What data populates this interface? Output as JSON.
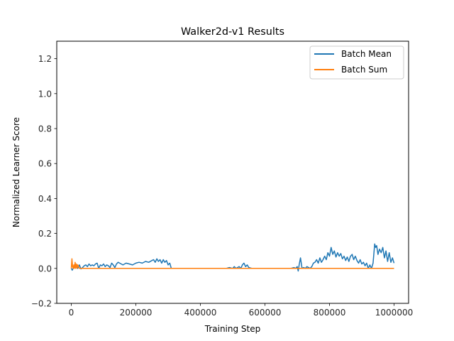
{
  "chart_data": {
    "type": "line",
    "title": "Walker2d-v1 Results",
    "xlabel": "Training Step",
    "ylabel": "Normalized Learner Score",
    "xlim": [
      -45000,
      1045000
    ],
    "ylim": [
      -0.2,
      1.3
    ],
    "xticks": [
      0,
      200000,
      400000,
      600000,
      800000,
      1000000
    ],
    "xtick_labels": [
      "0",
      "200000",
      "400000",
      "600000",
      "800000",
      "1000000"
    ],
    "yticks": [
      -0.2,
      0.0,
      0.2,
      0.4,
      0.6,
      0.8,
      1.0,
      1.2
    ],
    "ytick_labels": [
      "−0.2",
      "0.0",
      "0.2",
      "0.4",
      "0.6",
      "0.8",
      "1.0",
      "1.2"
    ],
    "grid": false,
    "legend_position": "top-right",
    "series": [
      {
        "name": "Batch Mean",
        "color": "#1f77b4",
        "x": [
          0,
          3000,
          6000,
          10000,
          15000,
          20000,
          25000,
          30000,
          35000,
          40000,
          45000,
          50000,
          55000,
          60000,
          65000,
          70000,
          75000,
          80000,
          85000,
          90000,
          95000,
          100000,
          105000,
          110000,
          115000,
          120000,
          125000,
          130000,
          135000,
          140000,
          145000,
          150000,
          160000,
          170000,
          180000,
          190000,
          200000,
          210000,
          220000,
          230000,
          240000,
          250000,
          255000,
          260000,
          265000,
          270000,
          275000,
          280000,
          285000,
          290000,
          295000,
          300000,
          305000,
          310000,
          320000,
          340000,
          360000,
          380000,
          400000,
          420000,
          440000,
          460000,
          480000,
          490000,
          500000,
          505000,
          510000,
          515000,
          520000,
          525000,
          530000,
          535000,
          540000,
          545000,
          550000,
          560000,
          580000,
          600000,
          620000,
          640000,
          660000,
          680000,
          690000,
          695000,
          700000,
          703000,
          706000,
          710000,
          715000,
          720000,
          725000,
          730000,
          740000,
          745000,
          750000,
          755000,
          760000,
          765000,
          770000,
          775000,
          780000,
          785000,
          790000,
          795000,
          800000,
          805000,
          810000,
          815000,
          820000,
          825000,
          830000,
          835000,
          840000,
          845000,
          850000,
          855000,
          860000,
          865000,
          870000,
          875000,
          880000,
          885000,
          890000,
          895000,
          900000,
          905000,
          910000,
          915000,
          920000,
          925000,
          930000,
          935000,
          940000,
          943000,
          946000,
          950000,
          955000,
          960000,
          965000,
          970000,
          975000,
          980000,
          985000,
          990000,
          995000,
          1000000
        ],
        "y": [
          0.0,
          -0.01,
          0.0,
          0.005,
          0.01,
          0.0,
          0.02,
          -0.003,
          0.005,
          0.015,
          0.02,
          0.01,
          0.025,
          0.015,
          0.02,
          0.015,
          0.025,
          0.03,
          0.0,
          0.02,
          0.015,
          0.025,
          0.01,
          0.02,
          0.015,
          0.005,
          0.03,
          0.02,
          0.005,
          0.025,
          0.035,
          0.03,
          0.02,
          0.03,
          0.025,
          0.02,
          0.03,
          0.035,
          0.03,
          0.04,
          0.035,
          0.045,
          0.05,
          0.035,
          0.055,
          0.04,
          0.05,
          0.03,
          0.05,
          0.035,
          0.045,
          0.02,
          0.03,
          0.0,
          0.0,
          0.0,
          0.0,
          0.0,
          0.0,
          0.0,
          0.0,
          0.0,
          0.0,
          0.005,
          0.0,
          0.01,
          0.0,
          0.005,
          0.01,
          0.0,
          0.02,
          0.03,
          0.01,
          0.02,
          0.005,
          0.0,
          0.0,
          0.0,
          0.0,
          0.0,
          0.0,
          0.0,
          0.005,
          0.0,
          0.01,
          -0.015,
          0.02,
          0.06,
          0.0,
          0.005,
          0.0,
          0.01,
          0.0,
          0.01,
          0.03,
          0.035,
          0.05,
          0.03,
          0.06,
          0.035,
          0.05,
          0.07,
          0.05,
          0.09,
          0.07,
          0.12,
          0.08,
          0.1,
          0.065,
          0.09,
          0.07,
          0.085,
          0.055,
          0.07,
          0.045,
          0.065,
          0.04,
          0.07,
          0.08,
          0.05,
          0.07,
          0.045,
          0.03,
          0.05,
          0.025,
          0.035,
          0.015,
          0.03,
          0.0,
          0.02,
          0.0,
          0.03,
          0.14,
          0.12,
          0.13,
          0.08,
          0.11,
          0.09,
          0.12,
          0.06,
          0.1,
          0.04,
          0.09,
          0.035,
          0.06,
          0.03
        ]
      },
      {
        "name": "Batch Sum",
        "color": "#ff7f0e",
        "x": [
          0,
          2000,
          4000,
          6000,
          8000,
          10000,
          12000,
          14000,
          16000,
          18000,
          20000,
          25000,
          30000,
          50000,
          100000,
          200000,
          300000,
          400000,
          500000,
          600000,
          700000,
          800000,
          900000,
          1000000
        ],
        "y": [
          0.0,
          0.055,
          0.01,
          0.0,
          0.02,
          0.0,
          0.035,
          0.0,
          0.025,
          0.0,
          0.02,
          0.0,
          0.0,
          0.0,
          0.0,
          0.0,
          0.0,
          0.0,
          0.0,
          0.0,
          0.0,
          0.0,
          0.0,
          0.0
        ]
      }
    ]
  }
}
